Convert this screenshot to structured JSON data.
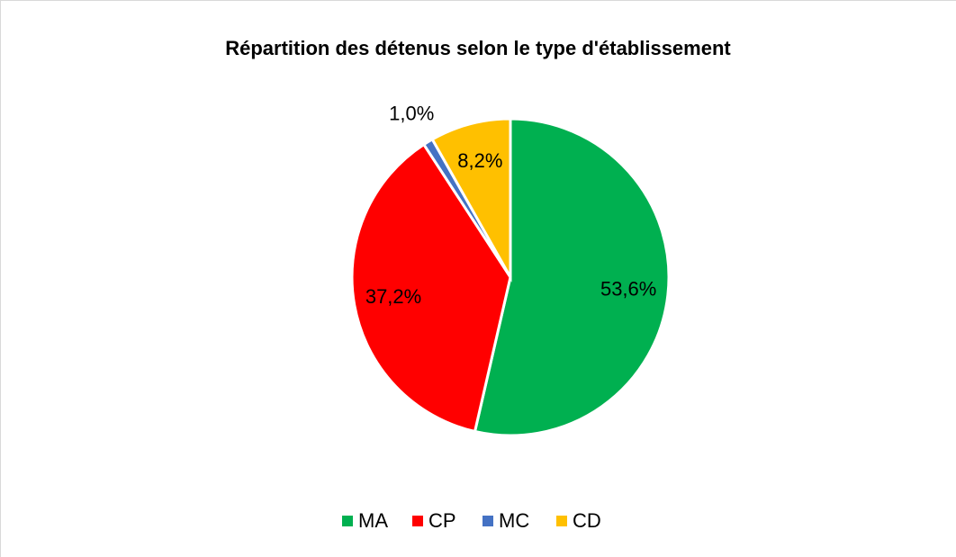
{
  "chart_data": {
    "type": "pie",
    "title": "Répartition des détenus selon le type d'établissement",
    "categories": [
      "MA",
      "CP",
      "MC",
      "CD"
    ],
    "values": [
      53.6,
      37.2,
      1.0,
      8.2
    ],
    "value_labels": [
      "53,6%",
      "37,2%",
      "1,0%",
      "8,2%"
    ],
    "colors": [
      "#00b050",
      "#ff0000",
      "#4472c4",
      "#ffc000"
    ],
    "legend": "bottom"
  }
}
